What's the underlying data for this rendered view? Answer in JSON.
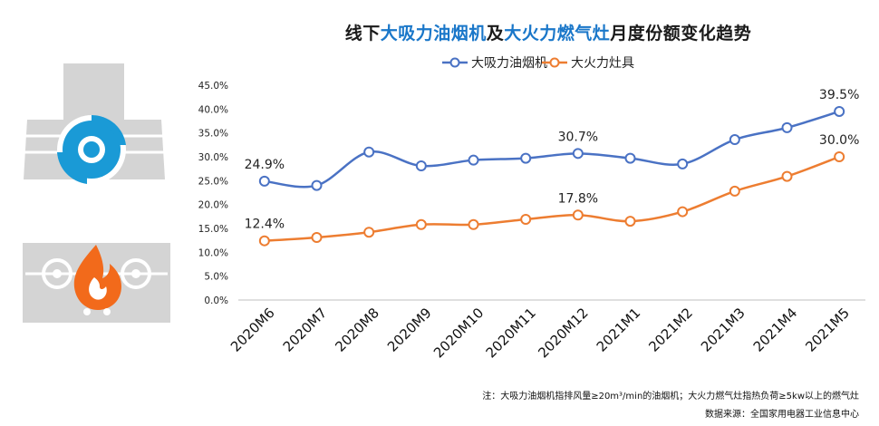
{
  "title": {
    "p1": "线下",
    "p2": "大吸力油烟机",
    "p3": "及",
    "p4": "大火力燃气灶",
    "p5": "月度份额变化趋势"
  },
  "notes": {
    "note": "注：大吸力油烟机指排风量≥20m³/min的油烟机；大火力燃气灶指热负荷≥5kw以上的燃气灶",
    "source": "数据来源：全国家用电器工业信息中心"
  },
  "colors": {
    "series1": "#4a72c4",
    "series2": "#ed7d31",
    "title_highlight": "#1a77c9",
    "icon_blue": "#1a9ad6",
    "icon_orange": "#f26a1b",
    "icon_gray": "#d4d4d4"
  },
  "icons": [
    "range-hood-icon",
    "gas-stove-icon"
  ],
  "chart_data": {
    "type": "line",
    "categories": [
      "2020M6",
      "2020M7",
      "2020M8",
      "2020M9",
      "2020M10",
      "2020M11",
      "2020M12",
      "2021M1",
      "2021M2",
      "2021M3",
      "2021M4",
      "2021M5"
    ],
    "series": [
      {
        "name": "大吸力油烟机",
        "values": [
          24.9,
          24.0,
          31.0,
          28.1,
          29.3,
          29.7,
          30.7,
          29.7,
          28.5,
          33.6,
          36.1,
          39.5
        ],
        "labels": [
          "24.9%",
          "30.7%",
          "39.5%"
        ]
      },
      {
        "name": "大火力灶具",
        "values": [
          12.4,
          13.1,
          14.2,
          15.8,
          15.8,
          16.9,
          17.8,
          16.5,
          18.5,
          22.8,
          25.9,
          30.0
        ],
        "labels": [
          "12.4%",
          "17.8%",
          "30.0%"
        ]
      }
    ],
    "yticks": [
      "0.0%",
      "5.0%",
      "10.0%",
      "15.0%",
      "20.0%",
      "25.0%",
      "30.0%",
      "35.0%",
      "40.0%",
      "45.0%"
    ],
    "ylim": [
      0,
      45
    ],
    "grid": false,
    "legend": "top"
  }
}
